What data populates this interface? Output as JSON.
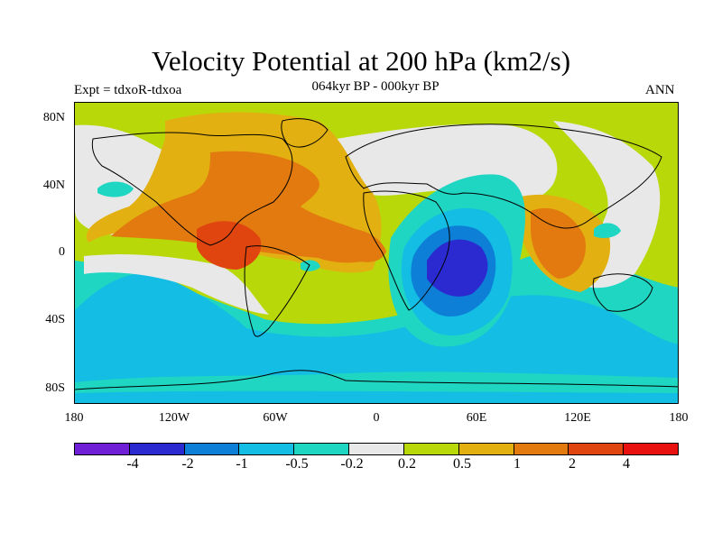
{
  "title": "Velocity Potential at 200 hPa (km2/s)",
  "subtitle": "064kyr BP - 000kyr BP",
  "experiment": "Expt = tdxoR-tdxoa",
  "season": "ANN",
  "y_ticks": [
    "80N",
    "40N",
    "0",
    "40S",
    "80S"
  ],
  "x_ticks": [
    "180",
    "120W",
    "60W",
    "0",
    "60E",
    "120E",
    "180"
  ],
  "colorbar": {
    "labels": [
      "-4",
      "-2",
      "-1",
      "-0.5",
      "-0.2",
      "0.2",
      "0.5",
      "1",
      "2",
      "4"
    ],
    "colors": [
      "#6f1fd6",
      "#2a2ad0",
      "#0d7fd6",
      "#13bde3",
      "#1fd6c3",
      "#e8e8e8",
      "#b9d80a",
      "#e2b111",
      "#e27a0f",
      "#e0450f",
      "#e8110f"
    ]
  },
  "map_colors": {
    "background": "#b9d80a",
    "neutral": "#e8e8e8",
    "pos_weak": "#e2b111",
    "pos_mid": "#e27a0f",
    "pos_strong": "#e0450f",
    "neg_weak": "#1fd6c3",
    "neg_mid": "#13bde3",
    "neg_strong": "#0d7fd6",
    "neg_max": "#2a2ad0"
  }
}
